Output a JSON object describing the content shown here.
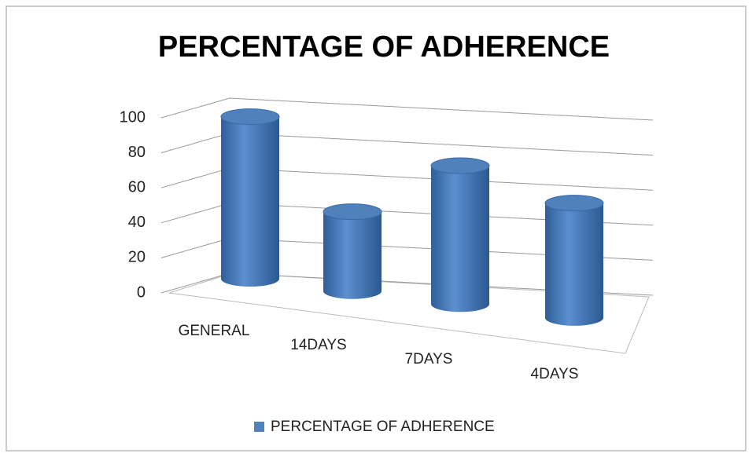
{
  "chart_data": {
    "type": "bar3d",
    "title": "PERCENTAGE OF ADHERENCE",
    "categories": [
      "GENERAL",
      "14DAYS",
      "7DAYS",
      "4DAYS"
    ],
    "series": [
      {
        "name": "PERCENTAGE OF ADHERENCE",
        "color": "#4f81bd",
        "values": [
          96,
          47,
          82,
          68
        ]
      }
    ],
    "ylim": [
      0,
      100
    ],
    "yticks": [
      0,
      20,
      40,
      60,
      80,
      100
    ],
    "grid": true,
    "legend": "bottom"
  }
}
